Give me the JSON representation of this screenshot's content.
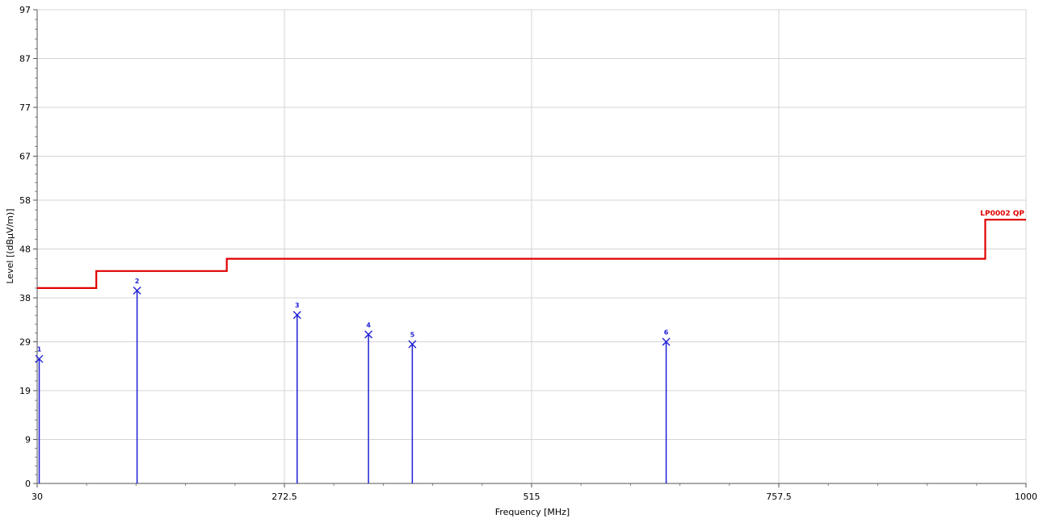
{
  "chart_data": {
    "type": "line",
    "title": "",
    "xlabel": "Frequency [MHz]",
    "ylabel": "Level [(dBµV/m)]",
    "xlim": [
      30,
      1000
    ],
    "ylim": [
      0,
      97
    ],
    "x_ticks": [
      {
        "value": 30,
        "label": "30"
      },
      {
        "value": 272.5,
        "label": "272.5"
      },
      {
        "value": 515,
        "label": "515"
      },
      {
        "value": 757.5,
        "label": "757.5"
      },
      {
        "value": 1000,
        "label": "1000"
      }
    ],
    "y_ticks": [
      {
        "value": 0,
        "label": "0"
      },
      {
        "value": 9,
        "label": "9"
      },
      {
        "value": 19,
        "label": "19"
      },
      {
        "value": 29,
        "label": "29"
      },
      {
        "value": 38,
        "label": "38"
      },
      {
        "value": 48,
        "label": "48"
      },
      {
        "value": 58,
        "label": "58"
      },
      {
        "value": 67,
        "label": "67"
      },
      {
        "value": 77,
        "label": "77"
      },
      {
        "value": 87,
        "label": "87"
      },
      {
        "value": 97,
        "label": "97"
      }
    ],
    "grid": true,
    "limit_line": {
      "name": "LP0002 QP",
      "color": "#e00000",
      "points": [
        {
          "x": 30,
          "y": 40.0
        },
        {
          "x": 88,
          "y": 40.0
        },
        {
          "x": 88,
          "y": 43.5
        },
        {
          "x": 216,
          "y": 43.5
        },
        {
          "x": 216,
          "y": 46.0
        },
        {
          "x": 960,
          "y": 46.0
        },
        {
          "x": 960,
          "y": 54.0
        },
        {
          "x": 1000,
          "y": 54.0
        }
      ]
    },
    "markers": {
      "color": "#1f1fd6",
      "points": [
        {
          "label": "1",
          "x": 32,
          "y": 25.5
        },
        {
          "label": "2",
          "x": 128,
          "y": 39.5
        },
        {
          "label": "3",
          "x": 285,
          "y": 34.5
        },
        {
          "label": "4",
          "x": 355,
          "y": 30.5
        },
        {
          "label": "5",
          "x": 398,
          "y": 28.5
        },
        {
          "label": "6",
          "x": 647,
          "y": 29.0
        }
      ]
    }
  }
}
